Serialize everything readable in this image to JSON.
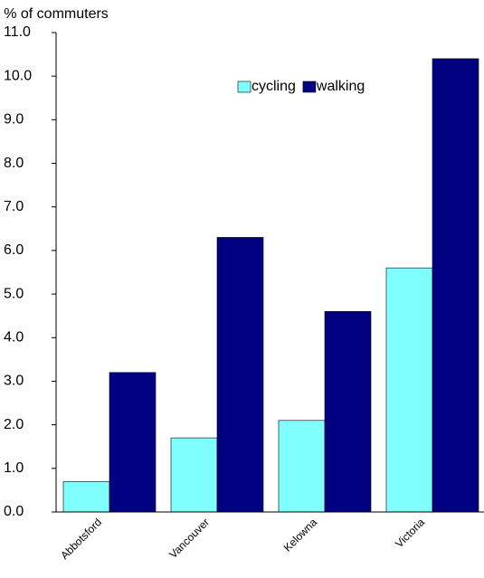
{
  "chart_data": {
    "type": "bar",
    "y_label": "% of commuters",
    "categories": [
      "Abbotsford",
      "Vancouver",
      "Kelowna",
      "Victoria"
    ],
    "series": [
      {
        "name": "cycling",
        "color": "#80ffff",
        "values": [
          0.7,
          1.7,
          2.1,
          5.6
        ]
      },
      {
        "name": "walking",
        "color": "#000080",
        "values": [
          3.2,
          6.3,
          4.6,
          10.4
        ]
      }
    ],
    "ylim": [
      0,
      11
    ],
    "yticks": [
      {
        "value": 0,
        "label": "0.0"
      },
      {
        "value": 1,
        "label": "1.0"
      },
      {
        "value": 2,
        "label": "2.0"
      },
      {
        "value": 3,
        "label": "3.0"
      },
      {
        "value": 4,
        "label": "4.0"
      },
      {
        "value": 5,
        "label": "5.0"
      },
      {
        "value": 6,
        "label": "6.0"
      },
      {
        "value": 7,
        "label": "7.0"
      },
      {
        "value": 8,
        "label": "8.0"
      },
      {
        "value": 9,
        "label": "9.0"
      },
      {
        "value": 10,
        "label": "10.0"
      },
      {
        "value": 11,
        "label": "11.0"
      }
    ],
    "grid": false,
    "legend": "top-right"
  }
}
